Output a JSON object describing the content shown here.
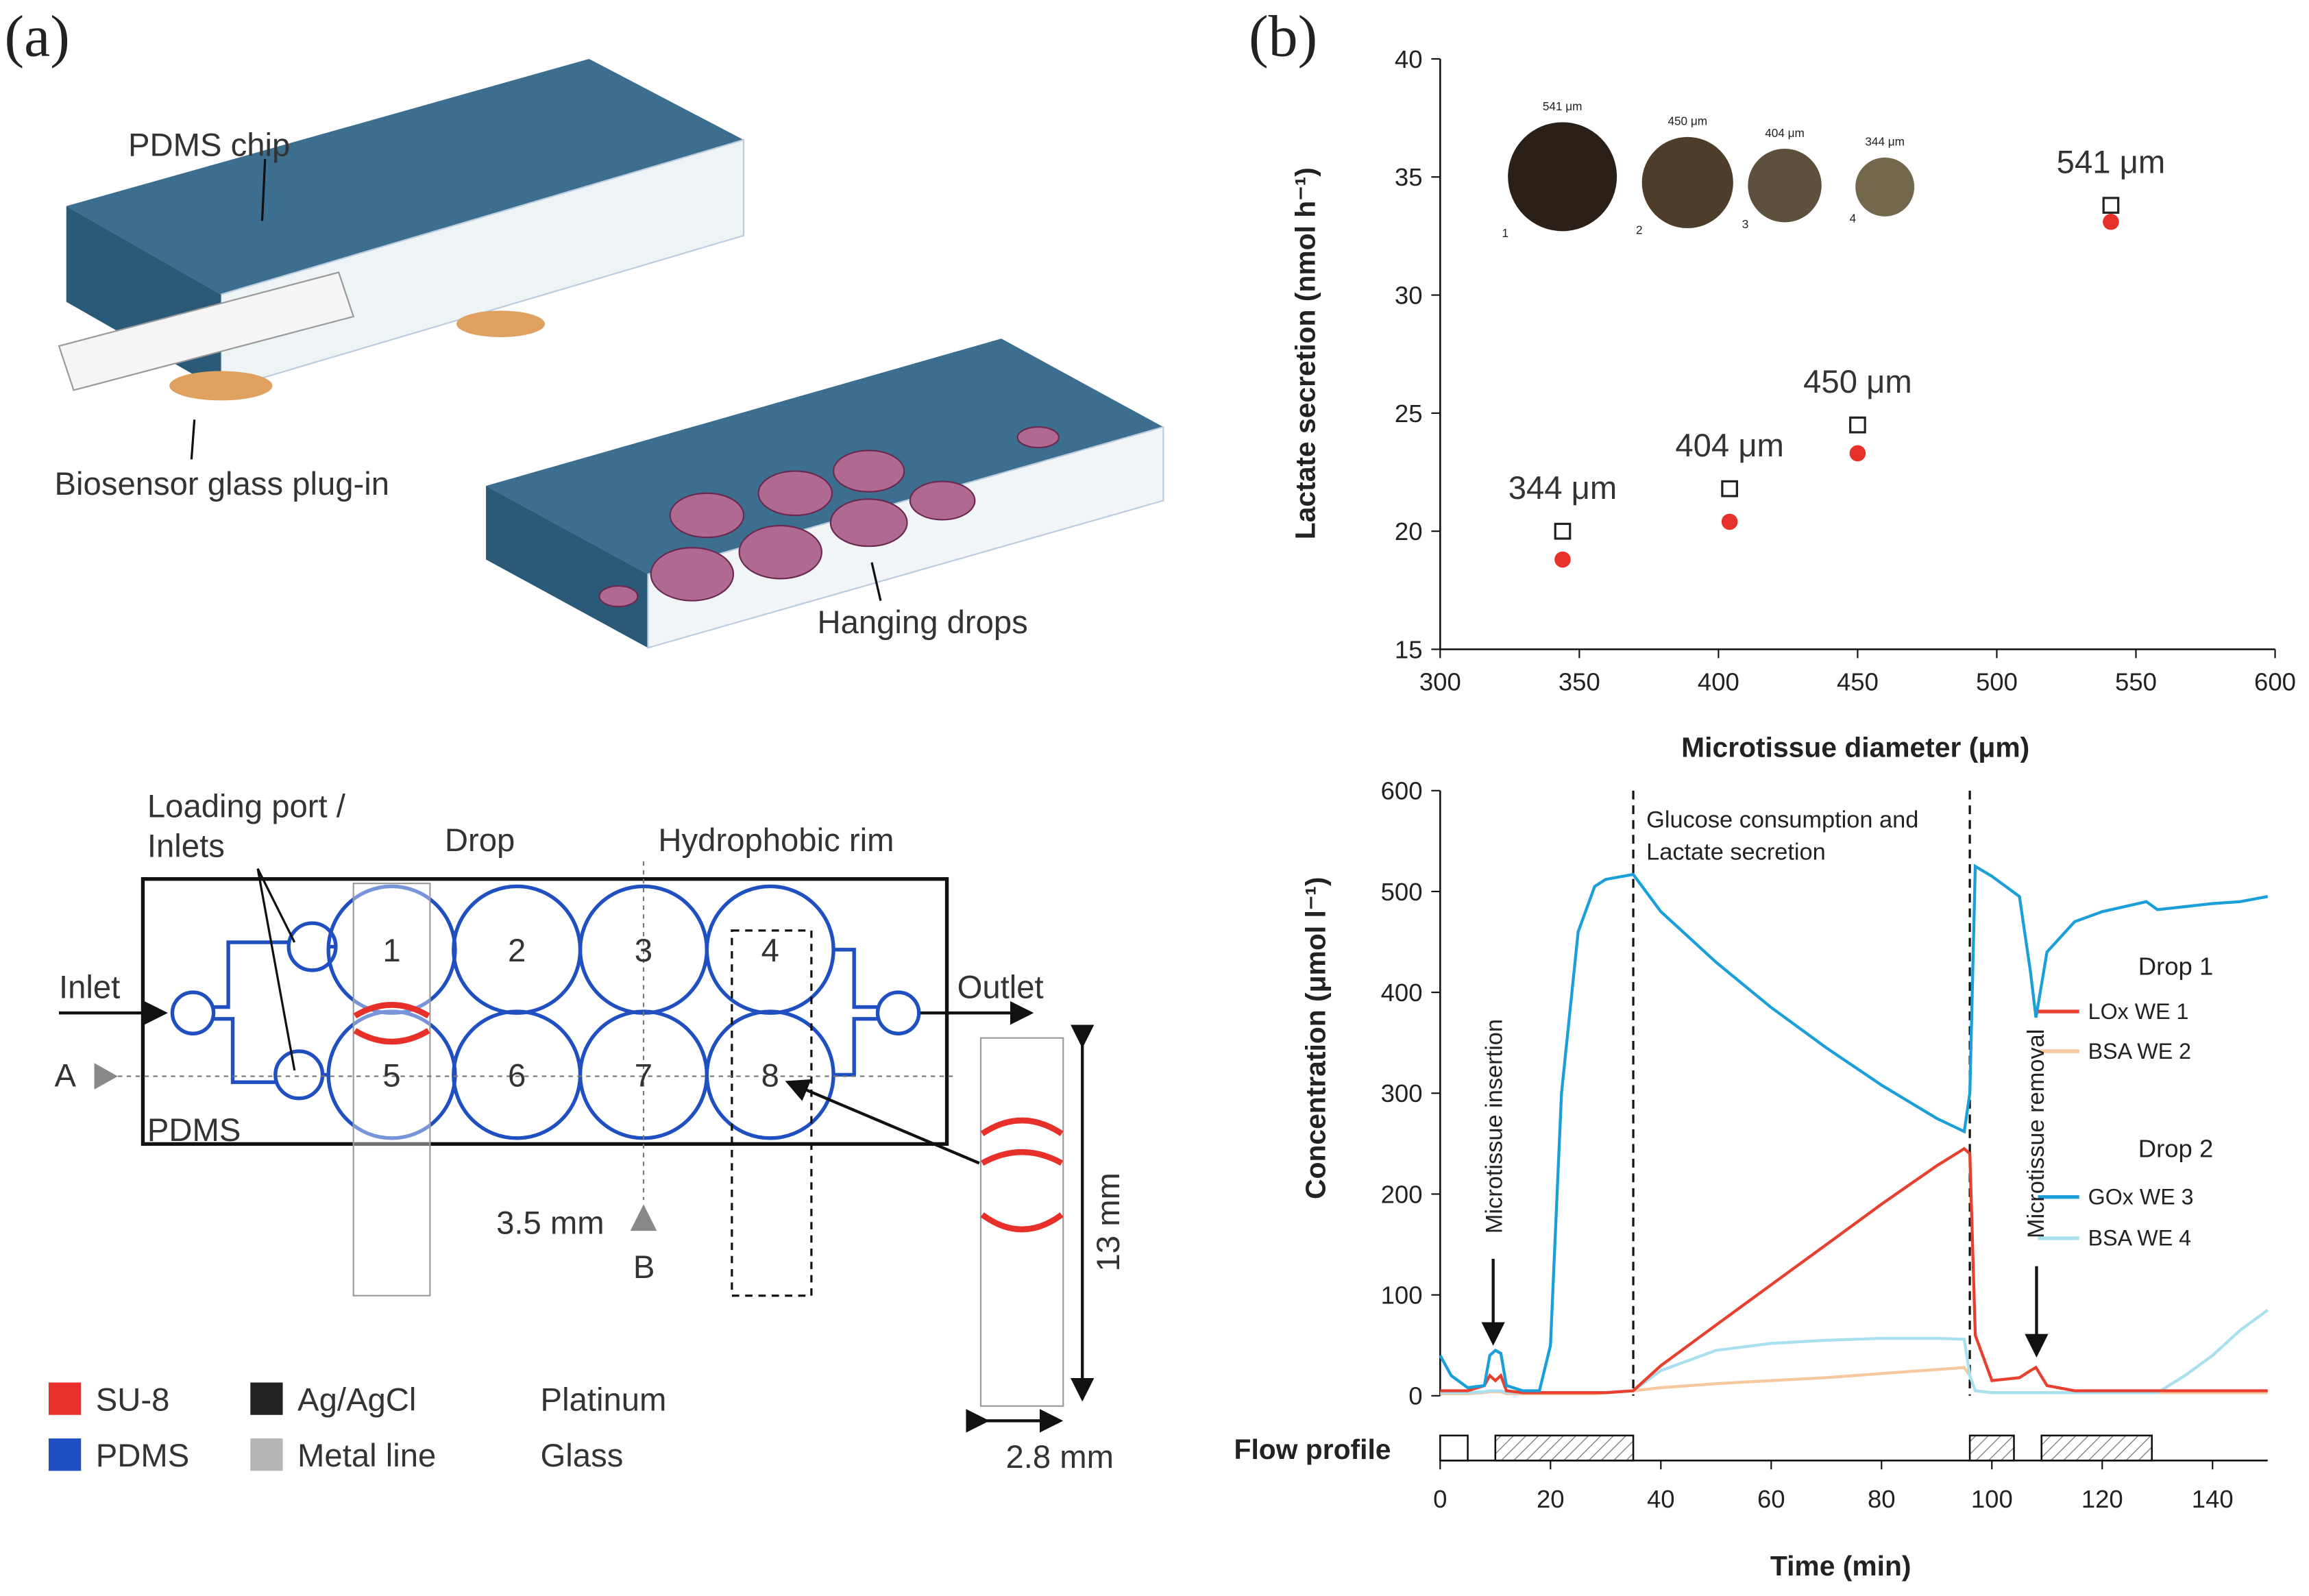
{
  "panel_a": {
    "panel_label": "(a)",
    "render_labels": [
      "PDMS chip",
      "Biosensor glass plug-in",
      "Hanging drops"
    ],
    "schematic": {
      "labels": [
        "Loading port /",
        "Inlets",
        "Drop",
        "Hydrophobic rim",
        "Inlet",
        "Outlet",
        "A",
        "B",
        "PDMS",
        "3.5 mm",
        "13 mm",
        "2.8 mm"
      ],
      "wells": [
        "1",
        "2",
        "3",
        "4",
        "5",
        "6",
        "7",
        "8"
      ]
    },
    "legend": [
      {
        "label": "SU-8",
        "color": "#e8302a"
      },
      {
        "label": "Ag/AgCl",
        "color": "#222222"
      },
      {
        "label": "Platinum",
        "color": "#ffffff"
      },
      {
        "label": "PDMS",
        "color": "#1f4fc0"
      },
      {
        "label": "Metal line",
        "color": "#b5b5b5"
      },
      {
        "label": "Glass",
        "color": "#ffffff"
      }
    ]
  },
  "panel_b": {
    "panel_label": "(b)"
  },
  "chart_data": [
    {
      "type": "scatter",
      "x_label": "Microtissue diameter (μm)",
      "y_label": "Lactate secretion (nmol h⁻¹)",
      "xlim": [
        300,
        600
      ],
      "ylim": [
        15,
        40
      ],
      "xticks": [
        300,
        350,
        400,
        450,
        500,
        550,
        600
      ],
      "yticks": [
        15,
        20,
        25,
        30,
        35,
        40
      ],
      "series": [
        {
          "color": "#222222",
          "marker": "square",
          "x": [
            344,
            404,
            450,
            541
          ],
          "values": [
            20.0,
            21.8,
            24.5,
            33.8
          ]
        },
        {
          "color": "#e8302a",
          "marker": "circle",
          "x": [
            344,
            404,
            450,
            541
          ],
          "values": [
            18.8,
            20.4,
            23.3,
            33.1
          ]
        }
      ],
      "annotations": [
        "344 μm",
        "404 μm",
        "450 μm",
        "541 μm"
      ],
      "insets": [
        {
          "label": "541 μm",
          "index": "1"
        },
        {
          "label": "450 μm",
          "index": "2"
        },
        {
          "label": "404 μm",
          "index": "3"
        },
        {
          "label": "344 μm",
          "index": "4"
        }
      ]
    },
    {
      "type": "line",
      "x_label": "Time (min)",
      "y_label": "Concentration (μmol l⁻¹)",
      "xlim": [
        0,
        150
      ],
      "ylim": [
        0,
        600
      ],
      "xticks": [
        0,
        20,
        40,
        60,
        80,
        100,
        120,
        140
      ],
      "yticks": [
        0,
        100,
        200,
        300,
        400,
        500,
        600
      ],
      "x": [
        0,
        2,
        5,
        8,
        9,
        10,
        11,
        12,
        15,
        18,
        20,
        22,
        25,
        28,
        30,
        35,
        40,
        50,
        60,
        70,
        80,
        90,
        95,
        96,
        97,
        100,
        105,
        107,
        108,
        110,
        115,
        120,
        128,
        130,
        135,
        140,
        145,
        150
      ],
      "series": [
        {
          "name": "LOx WE 1",
          "color": "#e8402f",
          "values": [
            5,
            5,
            5,
            10,
            20,
            15,
            20,
            5,
            3,
            3,
            3,
            3,
            3,
            3,
            3,
            5,
            30,
            70,
            110,
            150,
            190,
            228,
            245,
            240,
            60,
            15,
            18,
            25,
            28,
            10,
            5,
            5,
            5,
            5,
            5,
            5,
            5,
            5
          ]
        },
        {
          "name": "BSA WE 2",
          "color": "#f6c8a0",
          "values": [
            2,
            2,
            2,
            3,
            4,
            4,
            4,
            2,
            2,
            2,
            2,
            2,
            2,
            2,
            3,
            5,
            8,
            12,
            15,
            18,
            22,
            26,
            28,
            20,
            5,
            3,
            3,
            3,
            3,
            3,
            3,
            3,
            3,
            3,
            3,
            3,
            3,
            3
          ]
        },
        {
          "name": "GOx WE 3",
          "color": "#1a9fd8",
          "values": [
            40,
            20,
            8,
            10,
            40,
            45,
            42,
            10,
            5,
            5,
            50,
            300,
            460,
            505,
            512,
            517,
            480,
            430,
            385,
            345,
            308,
            275,
            262,
            300,
            525,
            515,
            495,
            420,
            375,
            440,
            470,
            480,
            490,
            482,
            485,
            488,
            490,
            495
          ]
        },
        {
          "name": "BSA WE 4",
          "color": "#a9e0f0",
          "values": [
            3,
            3,
            3,
            4,
            5,
            5,
            5,
            3,
            3,
            3,
            3,
            3,
            3,
            3,
            3,
            5,
            25,
            45,
            52,
            55,
            57,
            57,
            56,
            20,
            5,
            3,
            3,
            3,
            3,
            3,
            3,
            3,
            3,
            3,
            20,
            40,
            65,
            85
          ]
        }
      ],
      "legend_groups": [
        "Drop 1",
        "Drop 2"
      ],
      "annotations": [
        "Glucose consumption and",
        "Lactate secretion",
        "Microtissue insertion",
        "Microtissue removal"
      ],
      "vlines": [
        35,
        96
      ],
      "flow_profile": {
        "label": "Flow profile",
        "on": [
          [
            0,
            5
          ],
          [
            10,
            35
          ],
          [
            96,
            104
          ],
          [
            109,
            129
          ]
        ]
      }
    }
  ]
}
